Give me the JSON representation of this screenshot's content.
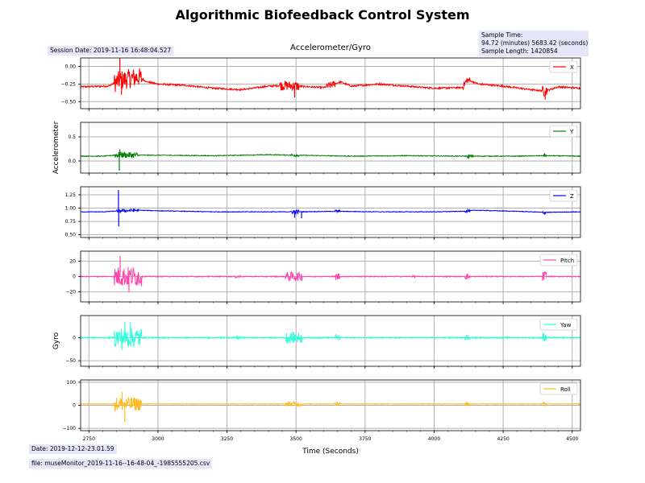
{
  "header": {
    "title": "Algorithmic Biofeedback Control System",
    "subtitle": "Accelerometer/Gyro",
    "session_date": "Session Date: 2019-11-16 16:48:04.527",
    "sample_time_label": "Sample Time:",
    "sample_time_value": "94.72 (minutes) 5683.42 (seconds)",
    "sample_length": "Sample Length: 1420854"
  },
  "footer": {
    "date": "Date: 2019-12-12-23.01.59",
    "file": "file: museMonitor_2019-11-16--16-48-04_-1985555205.csv"
  },
  "chart_data": {
    "type": "line",
    "xlabel": "Time (Seconds)",
    "xlim": [
      2720,
      4530
    ],
    "x_ticks": [
      2750,
      3000,
      3250,
      3500,
      3750,
      4000,
      4250,
      4500
    ],
    "x_tick_labels": [
      "2750",
      "3000",
      "3250",
      "3500",
      "3750",
      "4000",
      "4250",
      "4500"
    ],
    "grid": true,
    "legend_placement": "upper-right",
    "group_labels": [
      {
        "label": "Accelerometer",
        "panels": [
          0,
          1,
          2
        ]
      },
      {
        "label": "Gyro",
        "panels": [
          3,
          4,
          5
        ]
      }
    ],
    "panels": [
      {
        "name": "X",
        "color": "#ff0000",
        "ylim": [
          -0.6,
          0.12
        ],
        "yticks": [
          -0.5,
          -0.25,
          0.0
        ],
        "ytick_labels": [
          "−0.50",
          "−0.25",
          "0.00"
        ],
        "baseline": [
          [
            2720,
            -0.29
          ],
          [
            2820,
            -0.28
          ],
          [
            2860,
            -0.2
          ],
          [
            2930,
            -0.15
          ],
          [
            2960,
            -0.22
          ],
          [
            3000,
            -0.25
          ],
          [
            3100,
            -0.27
          ],
          [
            3200,
            -0.31
          ],
          [
            3300,
            -0.33
          ],
          [
            3400,
            -0.28
          ],
          [
            3450,
            -0.27
          ],
          [
            3500,
            -0.28
          ],
          [
            3600,
            -0.3
          ],
          [
            3660,
            -0.22
          ],
          [
            3700,
            -0.28
          ],
          [
            3800,
            -0.25
          ],
          [
            3900,
            -0.28
          ],
          [
            4000,
            -0.31
          ],
          [
            4100,
            -0.3
          ],
          [
            4120,
            -0.19
          ],
          [
            4160,
            -0.25
          ],
          [
            4250,
            -0.28
          ],
          [
            4350,
            -0.33
          ],
          [
            4400,
            -0.35
          ],
          [
            4450,
            -0.29
          ],
          [
            4530,
            -0.31
          ]
        ],
        "noise": 0.012,
        "bursts": [
          [
            2840,
            2940,
            0.14
          ],
          [
            3440,
            3510,
            0.07
          ],
          [
            3610,
            3640,
            0.05
          ],
          [
            4100,
            4130,
            0.05
          ],
          [
            4390,
            4410,
            0.08
          ]
        ],
        "spikes": [
          [
            2862,
            0.12
          ],
          [
            2868,
            -0.4
          ],
          [
            3495,
            -0.44
          ],
          [
            4402,
            -0.47
          ]
        ]
      },
      {
        "name": "Y",
        "color": "#008000",
        "ylim": [
          -0.25,
          0.8
        ],
        "yticks": [
          0.0,
          0.5
        ],
        "ytick_labels": [
          "0.0",
          "0.5"
        ],
        "baseline": [
          [
            2720,
            0.1
          ],
          [
            2800,
            0.1
          ],
          [
            2860,
            0.13
          ],
          [
            2900,
            0.12
          ],
          [
            3000,
            0.12
          ],
          [
            3200,
            0.11
          ],
          [
            3400,
            0.13
          ],
          [
            3500,
            0.12
          ],
          [
            3700,
            0.1
          ],
          [
            3900,
            0.11
          ],
          [
            4100,
            0.1
          ],
          [
            4300,
            0.1
          ],
          [
            4400,
            0.11
          ],
          [
            4530,
            0.1
          ]
        ],
        "noise": 0.008,
        "bursts": [
          [
            2840,
            2930,
            0.06
          ],
          [
            3480,
            3510,
            0.03
          ],
          [
            4120,
            4140,
            0.03
          ],
          [
            4395,
            4405,
            0.03
          ]
        ],
        "spikes": [
          [
            2860,
            -0.2
          ],
          [
            2862,
            0.24
          ],
          [
            4125,
            0.05
          ],
          [
            4400,
            0.16
          ]
        ]
      },
      {
        "name": "Z",
        "color": "#0000ff",
        "ylim": [
          0.45,
          1.4
        ],
        "yticks": [
          0.5,
          0.75,
          1.0,
          1.25
        ],
        "ytick_labels": [
          "0.50",
          "0.75",
          "1.00",
          "1.25"
        ],
        "baseline": [
          [
            2720,
            0.93
          ],
          [
            2800,
            0.93
          ],
          [
            2870,
            0.95
          ],
          [
            2930,
            0.96
          ],
          [
            3000,
            0.95
          ],
          [
            3200,
            0.93
          ],
          [
            3400,
            0.93
          ],
          [
            3500,
            0.93
          ],
          [
            3650,
            0.94
          ],
          [
            3800,
            0.93
          ],
          [
            4000,
            0.93
          ],
          [
            4100,
            0.94
          ],
          [
            4150,
            0.96
          ],
          [
            4300,
            0.94
          ],
          [
            4400,
            0.92
          ],
          [
            4530,
            0.93
          ]
        ],
        "noise": 0.006,
        "bursts": [
          [
            2850,
            2930,
            0.03
          ],
          [
            3480,
            3510,
            0.04
          ],
          [
            3640,
            3660,
            0.03
          ],
          [
            4110,
            4130,
            0.03
          ],
          [
            4390,
            4405,
            0.03
          ]
        ],
        "spikes": [
          [
            2857,
            1.34
          ],
          [
            2858,
            0.66
          ],
          [
            3495,
            0.82
          ],
          [
            3520,
            0.81
          ],
          [
            4400,
            0.88
          ]
        ]
      },
      {
        "name": "Pitch",
        "color": "#ff44aa",
        "ylim": [
          -33,
          33
        ],
        "yticks": [
          -20,
          0,
          20
        ],
        "ytick_labels": [
          "−20",
          "0",
          "20"
        ],
        "baseline": [
          [
            2720,
            0.0
          ],
          [
            4530,
            0.0
          ]
        ],
        "noise": 0.6,
        "bursts": [
          [
            2840,
            2940,
            13.0
          ],
          [
            3280,
            3300,
            2.0
          ],
          [
            3460,
            3520,
            6.0
          ],
          [
            3640,
            3660,
            5.0
          ],
          [
            3920,
            3930,
            2.0
          ],
          [
            4110,
            4130,
            4.0
          ],
          [
            4390,
            4405,
            7.0
          ]
        ],
        "spikes": [
          [
            2863,
            27
          ],
          [
            2895,
            -20
          ]
        ]
      },
      {
        "name": "Yaw",
        "color": "#33ffdd",
        "ylim": [
          -62,
          48
        ],
        "yticks": [
          -50,
          0
        ],
        "ytick_labels": [
          "−50",
          "0"
        ],
        "baseline": [
          [
            2720,
            0.0
          ],
          [
            4530,
            0.0
          ]
        ],
        "noise": 1.5,
        "bursts": [
          [
            2840,
            2940,
            22.0
          ],
          [
            3280,
            3300,
            5.0
          ],
          [
            3460,
            3520,
            12.0
          ],
          [
            3640,
            3660,
            8.0
          ],
          [
            4110,
            4130,
            7.0
          ],
          [
            4390,
            4405,
            12.0
          ]
        ],
        "spikes": [
          [
            2880,
            35
          ],
          [
            2900,
            34
          ],
          [
            2870,
            -26
          ]
        ]
      },
      {
        "name": "Roll",
        "color": "#ffbb22",
        "ylim": [
          -110,
          110
        ],
        "yticks": [
          -100,
          0,
          100
        ],
        "ytick_labels": [
          "−100",
          "0",
          "100"
        ],
        "baseline": [
          [
            2720,
            6.0
          ],
          [
            4530,
            6.0
          ]
        ],
        "noise": 1.5,
        "bursts": [
          [
            2840,
            2940,
            30.0
          ],
          [
            3460,
            3520,
            10.0
          ],
          [
            3640,
            3660,
            8.0
          ],
          [
            4110,
            4130,
            8.0
          ],
          [
            4390,
            4405,
            10.0
          ]
        ],
        "spikes": [
          [
            2880,
            -72
          ],
          [
            2870,
            58
          ]
        ]
      }
    ]
  }
}
